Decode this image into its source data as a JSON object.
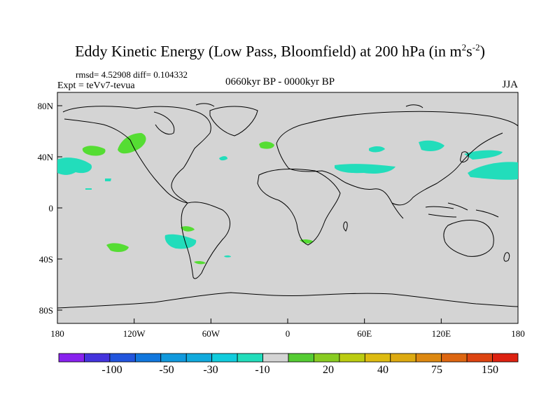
{
  "title_main": "Eddy Kinetic Energy (Low Pass, Bloomfield) at 200 hPa (in m",
  "title_sup1": "2",
  "title_s": "s",
  "title_sup2": "-2",
  "title_close": ")",
  "stats": "rmsd= 4.52908  diff= 0.104332",
  "expt": "Expt = teVv7-tevua",
  "period": "0660kyr BP - 0000kyr BP",
  "season": "JJA",
  "x_ticks": [
    "180",
    "120W",
    "60W",
    "0",
    "60E",
    "120E",
    "180"
  ],
  "y_ticks": [
    "80N",
    "40N",
    "0",
    "40S",
    "80S"
  ],
  "colorbar_labels": [
    "-100",
    "-50",
    "-30",
    "-10",
    "20",
    "40",
    "75",
    "150"
  ],
  "colors": {
    "land_ocean": "#d4d4d4",
    "positive_anomaly": "#55dd33",
    "negative_anomaly": "#22ddbb"
  },
  "colorbar_colors": [
    "#8822ee",
    "#4433dd",
    "#2255dd",
    "#1177dd",
    "#1199dd",
    "#11aadd",
    "#11ccdd",
    "#22ddbb",
    "#d4d4d4",
    "#55cc33",
    "#88cc22",
    "#bbcc11",
    "#ddbb11",
    "#ddaa11",
    "#dd8811",
    "#dd6611",
    "#dd4411",
    "#dd2211"
  ]
}
